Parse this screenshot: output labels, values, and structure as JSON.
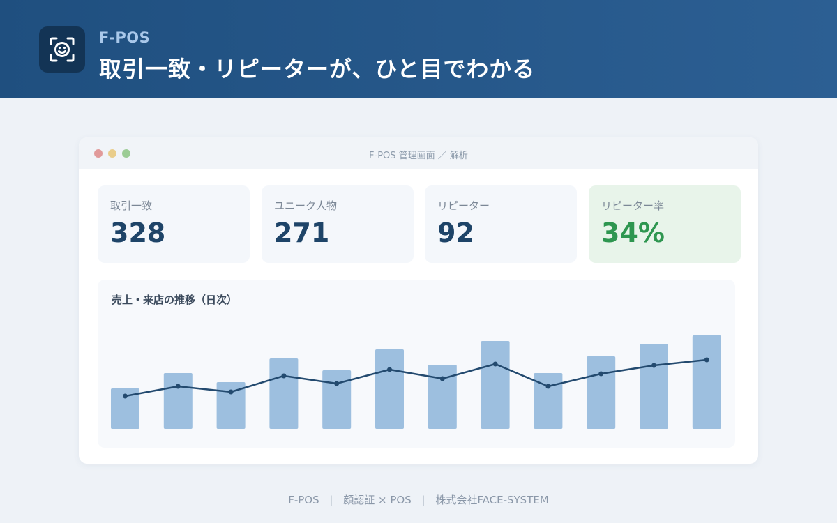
{
  "header": {
    "brand": "F-POS",
    "headline": "取引一致・リピーターが、ひと目でわかる",
    "icon": "face-scan-icon"
  },
  "window": {
    "title": "F-POS 管理画面 ／ 解析"
  },
  "kpis": [
    {
      "label": "取引一致",
      "value": "328"
    },
    {
      "label": "ユニーク人物",
      "value": "271"
    },
    {
      "label": "リピーター",
      "value": "92"
    },
    {
      "label": "リピーター率",
      "value": "34%"
    }
  ],
  "colors": {
    "bar": "#9dbfdf",
    "line": "#234a6f",
    "highlight_value": "#2e9650"
  },
  "chart_data": {
    "type": "bar",
    "title": "売上・来店の推移（日次）",
    "categories": [
      "",
      "",
      "",
      "",
      "",
      "",
      "",
      "",
      "",
      "",
      "",
      ""
    ],
    "series": [
      {
        "type": "bar",
        "values": [
          58,
          80,
          67,
          101,
          84,
          114,
          92,
          126,
          80,
          104,
          122,
          134
        ]
      },
      {
        "type": "line",
        "values": [
          47,
          61,
          53,
          76,
          65,
          85,
          72,
          93,
          61,
          79,
          91,
          99
        ]
      }
    ],
    "ylim": [
      0,
      170
    ],
    "grid": false,
    "legend": "none"
  },
  "footer": {
    "product": "F-POS",
    "tagline": "顔認証 × POS",
    "company": "株式会社FACE-SYSTEM"
  }
}
